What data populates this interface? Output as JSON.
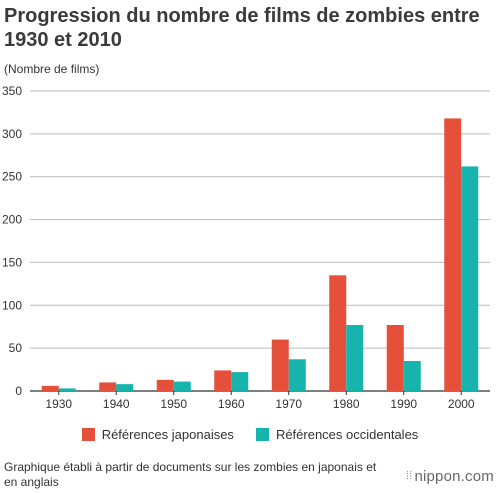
{
  "title": "Progression du nombre de films de zombies entre 1930 et 2010",
  "unit_label": "(Nombre de films)",
  "note": "Graphique établi à partir de documents sur les zombies en japonais et en anglais",
  "brand": "nippon.com",
  "brand_icon": "dots-icon",
  "colors": {
    "japanese": "#e4503a",
    "western": "#17b4ae",
    "axis": "#333333",
    "grid": "#bbbbbb"
  },
  "chart_data": {
    "type": "bar",
    "title": "Progression du nombre de films de zombies entre 1930 et 2010",
    "ylabel": "(Nombre de films)",
    "xlabel": "",
    "categories": [
      "1930",
      "1940",
      "1950",
      "1960",
      "1970",
      "1980",
      "1990",
      "2000"
    ],
    "series": [
      {
        "name": "Références japonaises",
        "values": [
          6,
          10,
          13,
          24,
          60,
          135,
          77,
          318
        ]
      },
      {
        "name": "Références occidentales",
        "values": [
          3,
          8,
          11,
          22,
          37,
          77,
          35,
          262
        ]
      }
    ],
    "ylim": [
      0,
      350
    ],
    "yticks": [
      0,
      50,
      100,
      150,
      200,
      250,
      300,
      350
    ],
    "grid": true,
    "legend": "bottom"
  }
}
